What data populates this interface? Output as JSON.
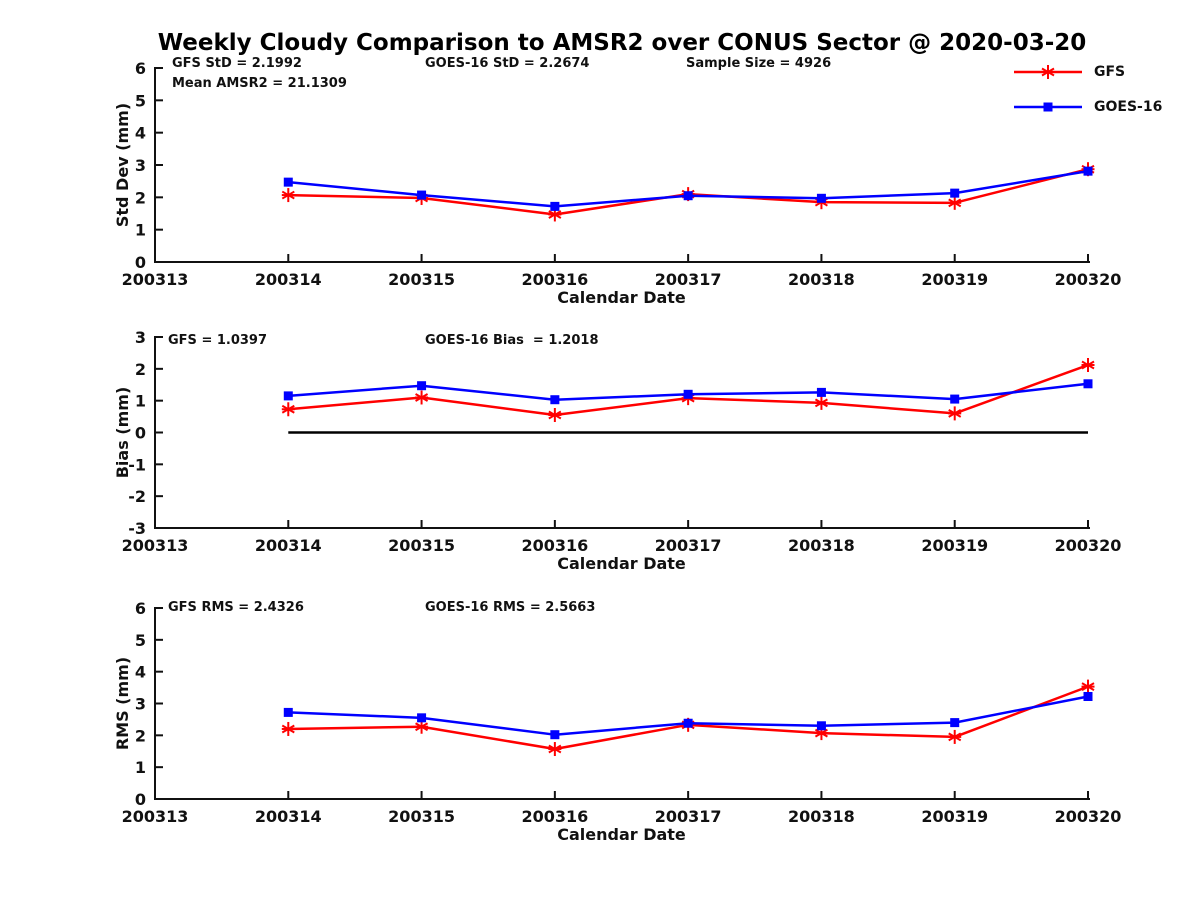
{
  "title": "Weekly Cloudy Comparison to AMSR2 over CONUS Sector @ 2020-03-20",
  "colors": {
    "gfs": "#ff0000",
    "goes16": "#0000ff",
    "axis": "#1a1a1a",
    "zero_line": "#000000",
    "background": "#ffffff"
  },
  "legend": {
    "position": "top-right",
    "entries": [
      {
        "label": "GFS",
        "color": "#ff0000",
        "marker": "asterisk"
      },
      {
        "label": "GOES-16",
        "color": "#0000ff",
        "marker": "square"
      }
    ]
  },
  "chart_data": [
    {
      "type": "line",
      "ylabel": "Std Dev (mm)",
      "xlabel": "Calendar Date",
      "ylim": [
        0,
        6
      ],
      "yticks": [
        0,
        1,
        2,
        3,
        4,
        5,
        6
      ],
      "x_tick_labels": [
        "200313",
        "200314",
        "200315",
        "200316",
        "200317",
        "200318",
        "200319",
        "200320"
      ],
      "x": [
        200314,
        200315,
        200316,
        200317,
        200318,
        200319,
        200320
      ],
      "series": [
        {
          "name": "GFS",
          "color": "#ff0000",
          "marker": "asterisk",
          "values": [
            2.07,
            1.98,
            1.47,
            2.1,
            1.85,
            1.83,
            2.87
          ]
        },
        {
          "name": "GOES-16",
          "color": "#0000ff",
          "marker": "square",
          "values": [
            2.47,
            2.07,
            1.72,
            2.05,
            1.97,
            2.13,
            2.81
          ]
        }
      ],
      "annotations": [
        "GFS StD = 2.1992",
        "Mean AMSR2 = 21.1309",
        "GOES-16 StD = 2.2674",
        "Sample Size = 4926"
      ],
      "zero_line": false,
      "grid": false
    },
    {
      "type": "line",
      "ylabel": "Bias (mm)",
      "xlabel": "Calendar Date",
      "ylim": [
        -3,
        3
      ],
      "yticks": [
        -3,
        -2,
        -1,
        0,
        1,
        2,
        3
      ],
      "x_tick_labels": [
        "200313",
        "200314",
        "200315",
        "200316",
        "200317",
        "200318",
        "200319",
        "200320"
      ],
      "x": [
        200314,
        200315,
        200316,
        200317,
        200318,
        200319,
        200320
      ],
      "series": [
        {
          "name": "GFS",
          "color": "#ff0000",
          "marker": "asterisk",
          "values": [
            0.73,
            1.1,
            0.55,
            1.08,
            0.93,
            0.6,
            2.12
          ]
        },
        {
          "name": "GOES-16",
          "color": "#0000ff",
          "marker": "square",
          "values": [
            1.15,
            1.47,
            1.03,
            1.2,
            1.26,
            1.05,
            1.53
          ]
        }
      ],
      "annotations": [
        "GFS = 1.0397",
        "GOES-16 Bias  = 1.2018"
      ],
      "zero_line": true,
      "grid": false
    },
    {
      "type": "line",
      "ylabel": "RMS (mm)",
      "xlabel": "Calendar Date",
      "ylim": [
        0,
        6
      ],
      "yticks": [
        0,
        1,
        2,
        3,
        4,
        5,
        6
      ],
      "x_tick_labels": [
        "200313",
        "200314",
        "200315",
        "200316",
        "200317",
        "200318",
        "200319",
        "200320"
      ],
      "x": [
        200314,
        200315,
        200316,
        200317,
        200318,
        200319,
        200320
      ],
      "series": [
        {
          "name": "GFS",
          "color": "#ff0000",
          "marker": "asterisk",
          "values": [
            2.2,
            2.27,
            1.57,
            2.33,
            2.07,
            1.95,
            3.53
          ]
        },
        {
          "name": "GOES-16",
          "color": "#0000ff",
          "marker": "square",
          "values": [
            2.72,
            2.55,
            2.02,
            2.38,
            2.3,
            2.4,
            3.22
          ]
        }
      ],
      "annotations": [
        "GFS RMS = 2.4326",
        "GOES-16 RMS = 2.5663"
      ],
      "zero_line": false,
      "grid": false
    }
  ]
}
